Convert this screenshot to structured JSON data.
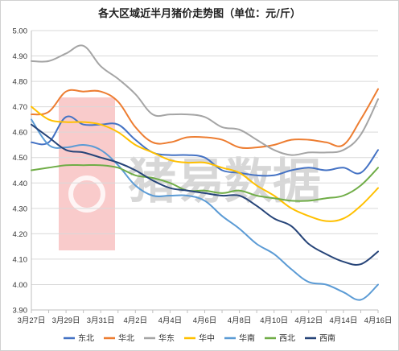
{
  "chart_data": {
    "type": "line",
    "title": "各大区域近半月猪价走势图（单位：元/斤）",
    "xlabel": "",
    "ylabel": "",
    "ylim": [
      3.9,
      5.0
    ],
    "yticks": [
      "3.90",
      "4.00",
      "4.10",
      "4.20",
      "4.30",
      "4.40",
      "4.50",
      "4.60",
      "4.70",
      "4.80",
      "4.90",
      "5.00"
    ],
    "categories": [
      "3月27日",
      "3月28日",
      "3月29日",
      "3月30日",
      "3月31日",
      "4月1日",
      "4月2日",
      "4月3日",
      "4月4日",
      "4月5日",
      "4月6日",
      "4月7日",
      "4月8日",
      "4月9日",
      "4月10日",
      "4月11日",
      "4月12日",
      "4月13日",
      "4月14日",
      "4月15日",
      "4月16日"
    ],
    "xtick_labels": [
      "3月27日",
      "",
      "3月29日",
      "",
      "3月31日",
      "",
      "4月2日",
      "",
      "4月4日",
      "",
      "4月6日",
      "",
      "4月8日",
      "",
      "4月10日",
      "",
      "4月12日",
      "",
      "4月14日",
      "",
      "4月16日"
    ],
    "grid": true,
    "legend_position": "bottom",
    "watermark": "猪易数据",
    "series": [
      {
        "name": "东北",
        "color": "#4472c4",
        "values": [
          4.56,
          4.56,
          4.66,
          4.63,
          4.63,
          4.63,
          4.57,
          4.52,
          4.51,
          4.51,
          4.5,
          4.45,
          4.44,
          4.43,
          4.43,
          4.45,
          4.46,
          4.45,
          4.46,
          4.44,
          4.53
        ]
      },
      {
        "name": "华北",
        "color": "#ed7d31",
        "values": [
          4.67,
          4.68,
          4.76,
          4.76,
          4.76,
          4.72,
          4.62,
          4.56,
          4.56,
          4.58,
          4.58,
          4.57,
          4.54,
          4.54,
          4.55,
          4.57,
          4.57,
          4.56,
          4.55,
          4.65,
          4.77
        ]
      },
      {
        "name": "华东",
        "color": "#a5a5a5",
        "values": [
          4.88,
          4.88,
          4.91,
          4.94,
          4.86,
          4.81,
          4.75,
          4.67,
          4.67,
          4.67,
          4.66,
          4.62,
          4.61,
          4.57,
          4.53,
          4.51,
          4.52,
          4.52,
          4.53,
          4.59,
          4.73
        ]
      },
      {
        "name": "华中",
        "color": "#ffc000",
        "values": [
          4.7,
          4.65,
          4.64,
          4.64,
          4.63,
          4.6,
          4.55,
          4.52,
          4.49,
          4.48,
          4.48,
          4.46,
          4.44,
          4.39,
          4.35,
          4.3,
          4.27,
          4.25,
          4.26,
          4.31,
          4.38
        ]
      },
      {
        "name": "华南",
        "color": "#5b9bd5",
        "values": [
          4.65,
          4.55,
          4.54,
          4.55,
          4.53,
          4.47,
          4.39,
          4.35,
          4.35,
          4.35,
          4.33,
          4.27,
          4.22,
          4.16,
          4.12,
          4.06,
          4.01,
          4.0,
          3.97,
          3.94,
          4.0
        ]
      },
      {
        "name": "西北",
        "color": "#70ad47",
        "values": [
          4.45,
          4.46,
          4.47,
          4.47,
          4.47,
          4.46,
          4.43,
          4.42,
          4.4,
          4.37,
          4.37,
          4.36,
          4.37,
          4.35,
          4.34,
          4.33,
          4.33,
          4.34,
          4.35,
          4.39,
          4.46
        ]
      },
      {
        "name": "西南",
        "color": "#264478",
        "values": [
          4.63,
          4.58,
          4.53,
          4.52,
          4.5,
          4.48,
          4.45,
          4.41,
          4.38,
          4.37,
          4.36,
          4.35,
          4.35,
          4.31,
          4.26,
          4.23,
          4.16,
          4.12,
          4.09,
          4.08,
          4.13
        ]
      }
    ]
  }
}
